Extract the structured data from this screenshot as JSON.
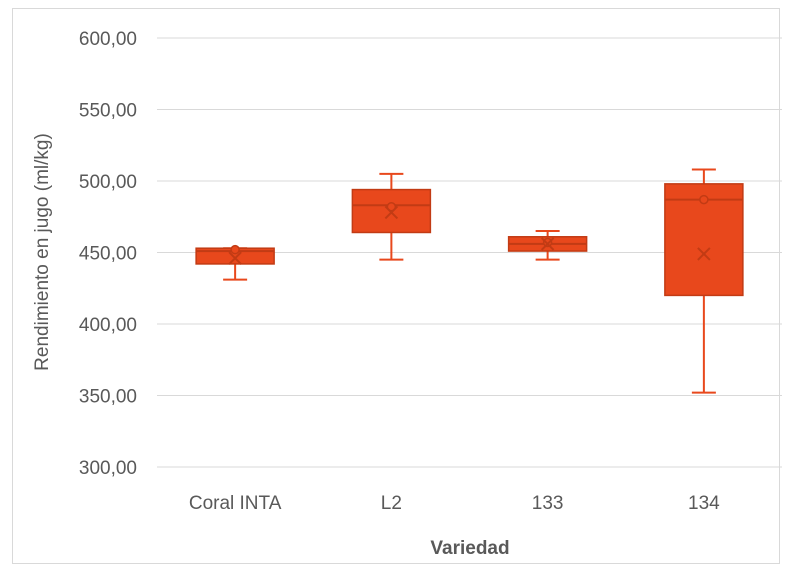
{
  "chart_data": {
    "type": "boxplot",
    "title": "",
    "xlabel": "Variedad",
    "ylabel": "Rendimiento en jugo (ml/kg)",
    "ylim": [
      300,
      600
    ],
    "yticks": [
      300,
      350,
      400,
      450,
      500,
      550,
      600
    ],
    "ytick_labels": [
      "300,00",
      "350,00",
      "400,00",
      "450,00",
      "500,00",
      "550,00",
      "600,00"
    ],
    "grid": true,
    "legend": "none",
    "categories": [
      "Coral INTA",
      "L2",
      "133",
      "134"
    ],
    "boxes": [
      {
        "category": "Coral INTA",
        "min": 431,
        "q1": 442,
        "median": 451,
        "q3": 453,
        "max": 453,
        "mean": 446,
        "outlier_points": [
          452
        ]
      },
      {
        "category": "L2",
        "min": 445,
        "q1": 464,
        "median": 483,
        "q3": 494,
        "max": 505,
        "mean": 478,
        "outlier_points": [
          482
        ]
      },
      {
        "category": "133",
        "min": 445,
        "q1": 451,
        "median": 456,
        "q3": 461,
        "max": 465,
        "mean": 456,
        "outlier_points": [
          457
        ]
      },
      {
        "category": "134",
        "min": 352,
        "q1": 420,
        "median": 487,
        "q3": 498,
        "max": 508,
        "mean": 449,
        "outlier_points": [
          487
        ]
      }
    ],
    "colors": {
      "box_fill": "#e8481c",
      "box_stroke": "#c23b14",
      "grid": "#d9d9d9",
      "text": "#595959"
    }
  }
}
